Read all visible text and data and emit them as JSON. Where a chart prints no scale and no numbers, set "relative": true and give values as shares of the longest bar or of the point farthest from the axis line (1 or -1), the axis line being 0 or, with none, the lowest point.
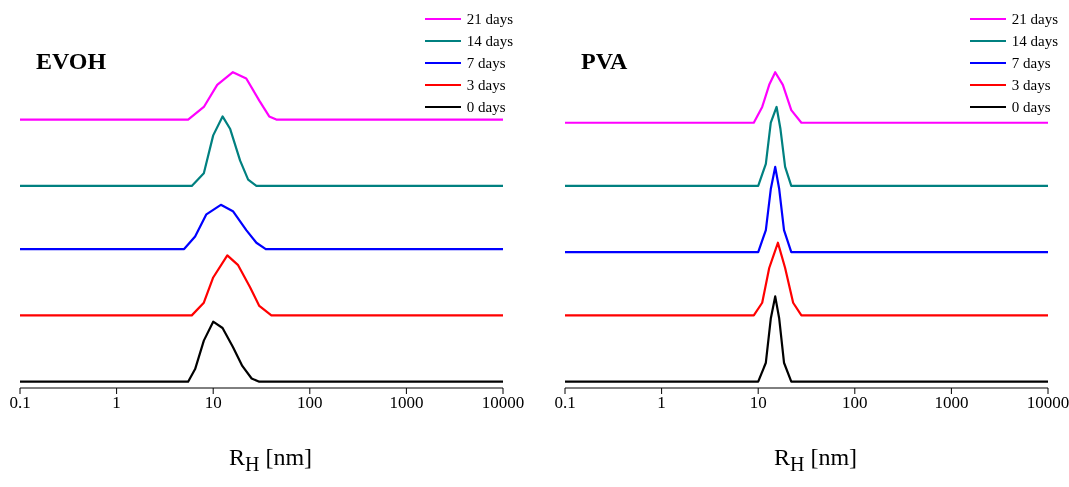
{
  "chart_data": [
    {
      "type": "line",
      "title": "EVOH",
      "xlabel": "R$_{H}$ [nm]",
      "relative": true,
      "log": "x",
      "xlim": [
        0.1,
        10000
      ],
      "xticks": [
        0.1,
        1,
        10,
        100,
        1000,
        10000
      ],
      "legend": "top right",
      "line_style": "solid",
      "marker": "none",
      "grid": false,
      "series": [
        {
          "name": "21 days",
          "color": "#ff00ff",
          "x": [
            0.1,
            5.5,
            8,
            11,
            16,
            22,
            30,
            38,
            45,
            10000
          ],
          "values": [
            0.85,
            0.85,
            0.89,
            0.96,
            1,
            0.98,
            0.91,
            0.86,
            0.85,
            0.85
          ]
        },
        {
          "name": "14 days",
          "color": "#008080",
          "x": [
            0.1,
            6,
            8,
            10,
            12.5,
            15,
            19,
            23,
            28,
            10000
          ],
          "values": [
            0.64,
            0.64,
            0.68,
            0.8,
            0.86,
            0.82,
            0.72,
            0.66,
            0.64,
            0.64
          ]
        },
        {
          "name": "7 days",
          "color": "#0000ff",
          "x": [
            0.1,
            5,
            6.5,
            8.5,
            12,
            16,
            22,
            28,
            35,
            10000
          ],
          "values": [
            0.44,
            0.44,
            0.48,
            0.55,
            0.58,
            0.56,
            0.5,
            0.46,
            0.44,
            0.44
          ]
        },
        {
          "name": "3 days",
          "color": "#ff0000",
          "x": [
            0.1,
            6,
            8,
            10,
            14,
            18,
            24,
            30,
            40,
            10000
          ],
          "values": [
            0.23,
            0.23,
            0.27,
            0.35,
            0.42,
            0.39,
            0.32,
            0.26,
            0.23,
            0.23
          ]
        },
        {
          "name": "0 days",
          "color": "#000000",
          "x": [
            0.1,
            5.5,
            6.5,
            8,
            10,
            12.5,
            16,
            20,
            25,
            30,
            10000
          ],
          "values": [
            0.02,
            0.02,
            0.06,
            0.15,
            0.21,
            0.19,
            0.13,
            0.07,
            0.03,
            0.02,
            0.02
          ]
        }
      ]
    },
    {
      "type": "line",
      "title": "PVA",
      "xlabel": "R$_{H}$ [nm]",
      "relative": true,
      "log": "x",
      "xlim": [
        0.1,
        10000
      ],
      "xticks": [
        0.1,
        1,
        10,
        100,
        1000,
        10000
      ],
      "legend": "top right",
      "line_style": "solid",
      "marker": "none",
      "grid": false,
      "series": [
        {
          "name": "21 days",
          "color": "#ff00ff",
          "x": [
            0.1,
            9,
            11,
            13,
            15,
            18,
            22,
            28,
            10000
          ],
          "values": [
            0.84,
            0.84,
            0.89,
            0.96,
            1,
            0.96,
            0.88,
            0.84,
            0.84
          ]
        },
        {
          "name": "14 days",
          "color": "#008080",
          "x": [
            0.1,
            10,
            12,
            13.5,
            15.5,
            17,
            19,
            22,
            10000
          ],
          "values": [
            0.64,
            0.64,
            0.71,
            0.84,
            0.89,
            0.82,
            0.7,
            0.64,
            0.64
          ]
        },
        {
          "name": "7 days",
          "color": "#0000ff",
          "x": [
            0.1,
            10,
            12,
            13.5,
            15,
            16.5,
            18.5,
            22,
            10000
          ],
          "values": [
            0.43,
            0.43,
            0.5,
            0.63,
            0.7,
            0.63,
            0.5,
            0.43,
            0.43
          ]
        },
        {
          "name": "3 days",
          "color": "#ff0000",
          "x": [
            0.1,
            9,
            11,
            13,
            16,
            19,
            23,
            28,
            10000
          ],
          "values": [
            0.23,
            0.23,
            0.27,
            0.38,
            0.46,
            0.38,
            0.27,
            0.23,
            0.23
          ]
        },
        {
          "name": "0 days",
          "color": "#000000",
          "x": [
            0.1,
            10,
            12,
            13.5,
            15,
            16.5,
            18.5,
            22,
            10000
          ],
          "values": [
            0.02,
            0.02,
            0.08,
            0.22,
            0.29,
            0.22,
            0.08,
            0.02,
            0.02
          ]
        }
      ]
    }
  ]
}
